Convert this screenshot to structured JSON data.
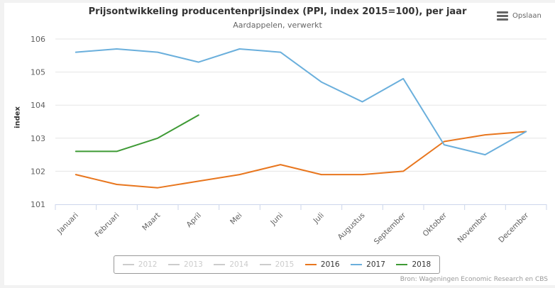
{
  "export": {
    "label": "Opslaan",
    "icon": "menu-icon"
  },
  "chart_data": {
    "type": "line",
    "title": "Prijsontwikkeling producentenprijsindex (PPI, index 2015=100), per jaar",
    "subtitle": "Aardappelen, verwerkt",
    "xlabel": "",
    "ylabel": "index",
    "ylim": [
      101,
      106
    ],
    "yticks": [
      "101",
      "102",
      "103",
      "104",
      "105",
      "106"
    ],
    "grid": true,
    "legend_position": "bottom-center",
    "categories": [
      "Januari",
      "Februari",
      "Maart",
      "April",
      "Mei",
      "Juni",
      "Juli",
      "Augustus",
      "September",
      "Oktober",
      "November",
      "December"
    ],
    "series": [
      {
        "name": "2012",
        "color": "#cccccc",
        "visible": false,
        "values": []
      },
      {
        "name": "2013",
        "color": "#cccccc",
        "visible": false,
        "values": []
      },
      {
        "name": "2014",
        "color": "#cccccc",
        "visible": false,
        "values": []
      },
      {
        "name": "2015",
        "color": "#cccccc",
        "visible": false,
        "values": []
      },
      {
        "name": "2016",
        "color": "#e8761e",
        "visible": true,
        "values": [
          101.9,
          101.6,
          101.5,
          101.7,
          101.9,
          102.2,
          101.9,
          101.9,
          102.0,
          102.9,
          103.1,
          103.2
        ]
      },
      {
        "name": "2017",
        "color": "#6aafdc",
        "visible": true,
        "values": [
          105.6,
          105.7,
          105.6,
          105.3,
          105.7,
          105.6,
          104.7,
          104.1,
          104.8,
          102.8,
          102.5,
          103.2
        ]
      },
      {
        "name": "2018",
        "color": "#3e9a35",
        "visible": true,
        "values": [
          102.6,
          102.6,
          103.0,
          103.7
        ]
      }
    ],
    "credits": "Bron: Wageningen Economic Research en CBS"
  }
}
